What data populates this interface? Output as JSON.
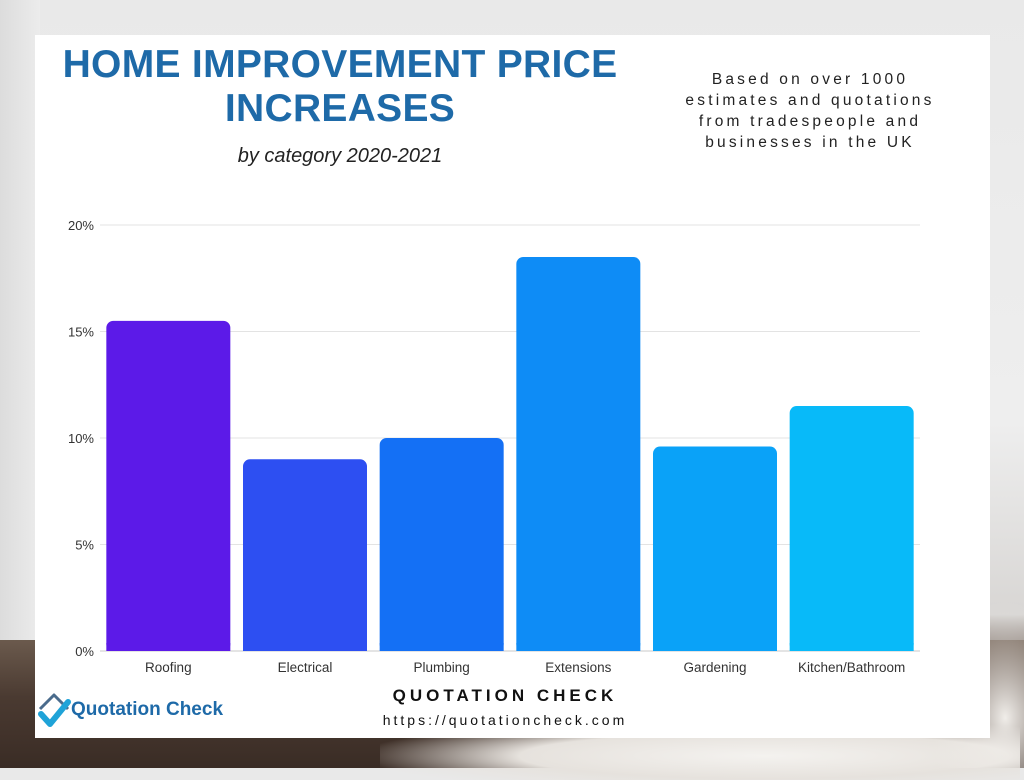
{
  "header": {
    "title_line1": "HOME IMPROVEMENT PRICE",
    "title_line2": "INCREASES",
    "subtitle": "by category 2020-2021",
    "note_line1": "Based on over 1000",
    "note_line2": "estimates and quotations",
    "note_line3": "from tradespeople and",
    "note_line4": "businesses in the UK"
  },
  "footer": {
    "brand_name": "QUOTATION CHECK",
    "url": "https://quotationcheck.com",
    "logo_text": "Quotation Check"
  },
  "colors": {
    "title": "#1e6aa8",
    "grid": "#e3e3e3",
    "bars": [
      "#5c1ae8",
      "#2d4ff2",
      "#1470f5",
      "#0e8cf6",
      "#0aa2f8",
      "#08baf9"
    ]
  },
  "chart_data": {
    "type": "bar",
    "title": "HOME IMPROVEMENT PRICE INCREASES",
    "subtitle": "by category 2020-2021",
    "categories": [
      "Roofing",
      "Electrical",
      "Plumbing",
      "Extensions",
      "Gardening",
      "Kitchen/Bathroom"
    ],
    "values": [
      15.5,
      9.0,
      10.0,
      18.5,
      9.6,
      11.5
    ],
    "ylim": [
      0,
      20
    ],
    "yticks": [
      0,
      5,
      10,
      15,
      20
    ],
    "ytick_labels": [
      "0%",
      "5%",
      "10%",
      "15%",
      "20%"
    ],
    "grid": true,
    "legend": "none"
  }
}
